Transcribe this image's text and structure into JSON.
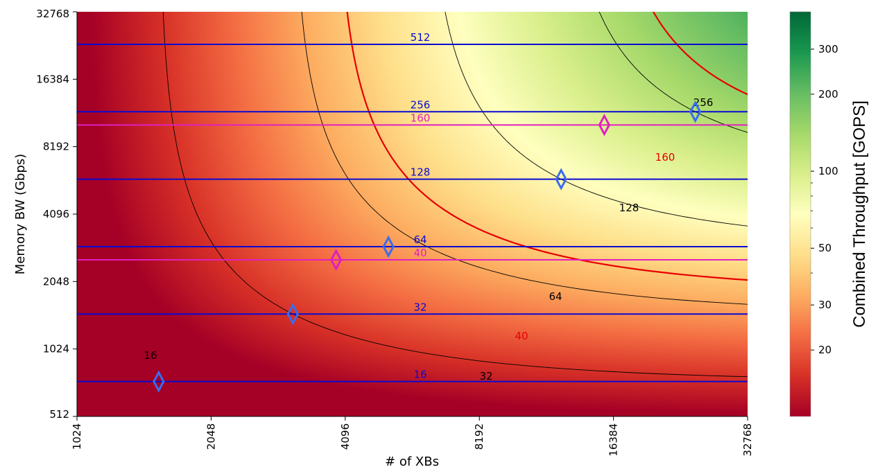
{
  "chart_data": {
    "type": "heatmap",
    "xlabel": "# of XBs",
    "ylabel": "Memory BW (Gbps)",
    "colorbar_label": "Combined Throughput [GOPS]",
    "x_scale": "log2",
    "y_scale": "log2",
    "xlim": [
      1024,
      32768
    ],
    "ylim": [
      512,
      32768
    ],
    "x_ticks": [
      "1024",
      "2048",
      "4096",
      "8192",
      "16384",
      "32768"
    ],
    "x_tick_values": [
      1024,
      2048,
      4096,
      8192,
      16384,
      32768
    ],
    "y_ticks": [
      "32768",
      "16384",
      "8192",
      "4096",
      "2048",
      "1024",
      "512"
    ],
    "y_tick_values": [
      32768,
      16384,
      8192,
      4096,
      2048,
      1024,
      512
    ],
    "colorbar": {
      "scale": "log",
      "range": [
        11,
        420
      ],
      "colormap": "RdYlGn",
      "ticks": [
        "300",
        "200",
        "100",
        "50",
        "30",
        "20"
      ],
      "tick_values": [
        300,
        200,
        100,
        50,
        30,
        20
      ]
    },
    "contours": [
      {
        "value": 16,
        "label": "16",
        "color": "#000000",
        "emphasis": false
      },
      {
        "value": 32,
        "label": "32",
        "color": "#000000",
        "emphasis": false
      },
      {
        "value": 40,
        "label": "40",
        "color": "#e60000",
        "emphasis": true
      },
      {
        "value": 64,
        "label": "64",
        "color": "#000000",
        "emphasis": false
      },
      {
        "value": 128,
        "label": "128",
        "color": "#000000",
        "emphasis": false
      },
      {
        "value": 160,
        "label": "160",
        "color": "#e60000",
        "emphasis": true
      },
      {
        "value": 256,
        "label": "256",
        "color": "#000000",
        "emphasis": false
      }
    ],
    "bandwidth_lines": [
      {
        "bw": 733,
        "label": "16",
        "color": "#0a0ad2"
      },
      {
        "bw": 1466,
        "label": "32",
        "color": "#0a0ad2"
      },
      {
        "bw": 2932,
        "label": "64",
        "color": "#0a0ad2"
      },
      {
        "bw": 5864,
        "label": "128",
        "color": "#0a0ad2"
      },
      {
        "bw": 11728,
        "label": "256",
        "color": "#0a0ad2"
      },
      {
        "bw": 23456,
        "label": "512",
        "color": "#0a0ad2"
      },
      {
        "bw": 2560,
        "label": "40",
        "color": "#e020c0"
      },
      {
        "bw": 10240,
        "label": "160",
        "color": "#e020c0"
      }
    ],
    "markers": [
      {
        "xbs": 1562,
        "bw": 733,
        "color": "#3a6cf0",
        "label": "16"
      },
      {
        "xbs": 3125,
        "bw": 1466,
        "color": "#3a6cf0",
        "label": "32"
      },
      {
        "xbs": 5120,
        "bw": 2932,
        "color": "#3a6cf0",
        "label": "64"
      },
      {
        "xbs": 12500,
        "bw": 5864,
        "color": "#3a6cf0",
        "label": "128"
      },
      {
        "xbs": 25000,
        "bw": 11728,
        "color": "#3a6cf0",
        "label": "256"
      },
      {
        "xbs": 3906,
        "bw": 2560,
        "color": "#e020c0",
        "label": "40"
      },
      {
        "xbs": 15625,
        "bw": 10240,
        "color": "#e020c0",
        "label": "160"
      }
    ]
  }
}
